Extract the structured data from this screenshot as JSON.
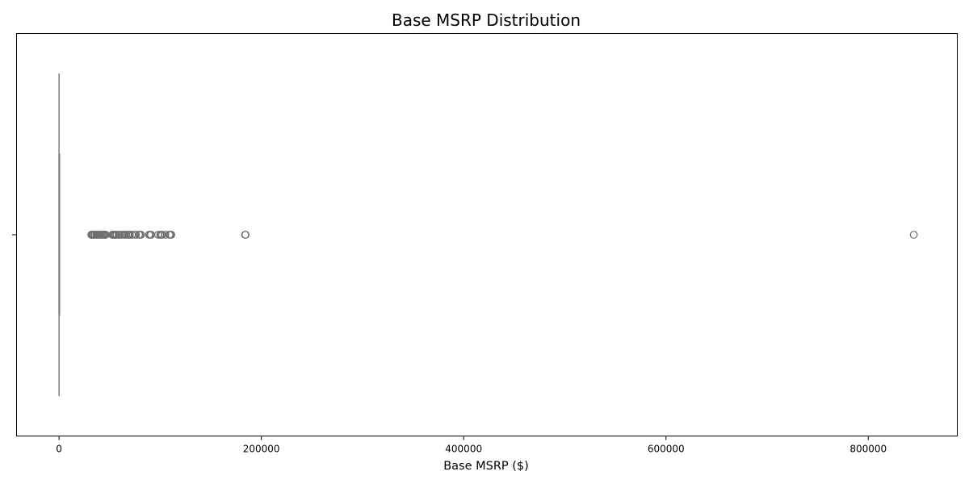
{
  "chart_data": {
    "type": "boxplot",
    "title": "Base MSRP Distribution",
    "xlabel": "Base MSRP ($)",
    "ylabel": "",
    "orientation": "horizontal",
    "xlim": [
      -42000,
      888000
    ],
    "xticks": [
      0,
      200000,
      400000,
      600000,
      800000
    ],
    "xtick_labels": [
      "0",
      "200000",
      "400000",
      "600000",
      "800000"
    ],
    "grid": false,
    "box": {
      "min": 0,
      "q1": 0,
      "median": 0,
      "q3": 0,
      "max": 0
    },
    "outliers": [
      31950,
      32250,
      32995,
      33795,
      34995,
      35500,
      36900,
      37495,
      38000,
      39995,
      40000,
      41000,
      42000,
      43000,
      44000,
      45000,
      45600,
      46000,
      52650,
      53500,
      54000,
      55000,
      56000,
      57000,
      59000,
      60000,
      62000,
      64000,
      65000,
      66500,
      68000,
      69000,
      70000,
      72000,
      75000,
      76000,
      79000,
      80000,
      81000,
      89000,
      90000,
      91000,
      98000,
      100000,
      101000,
      102000,
      105000,
      109000,
      110000,
      111000,
      184000,
      184400,
      845000
    ],
    "colors": {
      "box_line": "#7f7f7f",
      "outlier_edge": "#6e6e6e",
      "axes": "#000000"
    }
  }
}
